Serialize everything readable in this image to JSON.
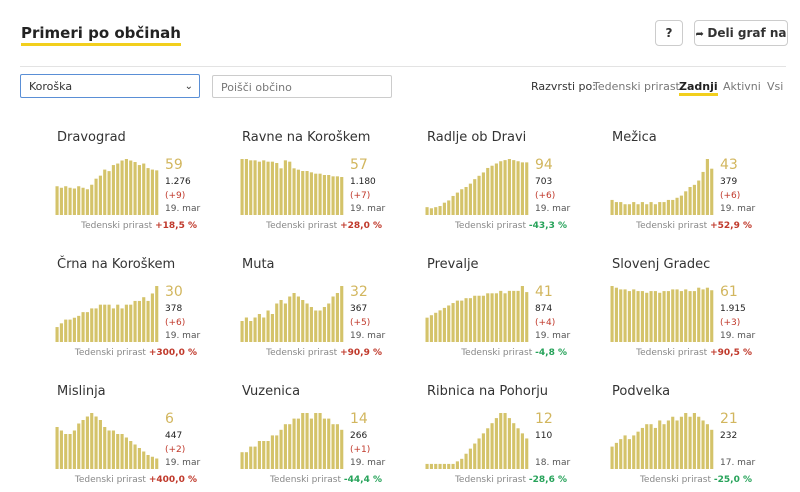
{
  "header": {
    "title": "Primeri po občinah",
    "help": "?",
    "share": "Deli graf na"
  },
  "filters": {
    "region": "Koroška",
    "search_placeholder": "Poišči občino",
    "sort_label": "Razvrsti po:",
    "sort_options": [
      "Tedenski prirast",
      "Zadnji",
      "Aktivni",
      "Vsi"
    ],
    "active_sort": 1
  },
  "panels": [
    {
      "name": "Dravograd",
      "active": "59",
      "total": "1.276",
      "change": "(+9)",
      "date": "19. mar",
      "footer_label": "Tedenski prirast",
      "weekly": "+18,5 %",
      "bars": [
        38,
        36,
        38,
        36,
        35,
        38,
        36,
        34,
        40,
        48,
        52,
        60,
        58,
        66,
        68,
        72,
        74,
        72,
        70,
        66,
        68,
        62,
        60,
        59
      ]
    },
    {
      "name": "Ravne na Koroškem",
      "active": "57",
      "total": "1.180",
      "change": "(+7)",
      "date": "19. mar",
      "footer_label": "Tedenski prirast",
      "weekly": "+28,0 %",
      "bars": [
        84,
        84,
        82,
        82,
        80,
        82,
        80,
        80,
        78,
        70,
        82,
        80,
        70,
        68,
        66,
        66,
        64,
        62,
        62,
        60,
        60,
        58,
        58,
        57
      ]
    },
    {
      "name": "Radlje ob Dravi",
      "active": "94",
      "total": "703",
      "change": "(+6)",
      "date": "19. mar",
      "footer_label": "Tedenski prirast",
      "weekly": "-43,3 %",
      "bars": [
        14,
        12,
        14,
        16,
        22,
        26,
        34,
        40,
        46,
        50,
        56,
        64,
        70,
        76,
        84,
        88,
        92,
        96,
        98,
        100,
        98,
        96,
        94,
        94
      ]
    },
    {
      "name": "Mežica",
      "active": "43",
      "total": "379",
      "change": "(+6)",
      "date": "19. mar",
      "footer_label": "Tedenski prirast",
      "weekly": "+52,9 %",
      "bars": [
        14,
        12,
        12,
        10,
        10,
        12,
        10,
        12,
        10,
        12,
        10,
        12,
        12,
        14,
        14,
        16,
        18,
        22,
        26,
        28,
        32,
        40,
        52,
        43
      ]
    },
    {
      "name": "Črna na Koroškem",
      "active": "30",
      "total": "378",
      "change": "(+6)",
      "date": "19. mar",
      "footer_label": "Tedenski prirast",
      "weekly": "+300,0 %",
      "bars": [
        8,
        10,
        12,
        12,
        13,
        14,
        16,
        16,
        18,
        18,
        20,
        20,
        20,
        18,
        20,
        18,
        20,
        20,
        22,
        22,
        24,
        22,
        26,
        30
      ]
    },
    {
      "name": "Muta",
      "active": "32",
      "total": "367",
      "change": "(+5)",
      "date": "19. mar",
      "footer_label": "Tedenski prirast",
      "weekly": "+90,9 %",
      "bars": [
        12,
        14,
        12,
        14,
        16,
        14,
        18,
        16,
        22,
        24,
        22,
        26,
        28,
        26,
        24,
        22,
        20,
        18,
        18,
        20,
        22,
        26,
        28,
        32
      ]
    },
    {
      "name": "Prevalje",
      "active": "41",
      "total": "874",
      "change": "(+4)",
      "date": "19. mar",
      "footer_label": "Tedenski prirast",
      "weekly": "-4,8 %",
      "bars": [
        20,
        22,
        24,
        26,
        28,
        30,
        32,
        34,
        34,
        36,
        36,
        38,
        38,
        38,
        40,
        40,
        40,
        42,
        40,
        42,
        42,
        42,
        46,
        41
      ]
    },
    {
      "name": "Slovenj Gradec",
      "active": "61",
      "total": "1.915",
      "change": "(+3)",
      "date": "19. mar",
      "footer_label": "Tedenski prirast",
      "weekly": "+90,5 %",
      "bars": [
        66,
        64,
        62,
        62,
        60,
        62,
        60,
        60,
        58,
        60,
        60,
        58,
        60,
        60,
        62,
        62,
        60,
        62,
        60,
        60,
        64,
        62,
        64,
        61
      ]
    },
    {
      "name": "Mislinja",
      "active": "6",
      "total": "447",
      "change": "(+2)",
      "date": "19. mar",
      "footer_label": "Tedenski prirast",
      "weekly": "+400,0 %",
      "bars": [
        24,
        22,
        20,
        20,
        22,
        26,
        28,
        30,
        32,
        30,
        28,
        24,
        22,
        22,
        20,
        20,
        18,
        16,
        14,
        12,
        10,
        8,
        7,
        6
      ]
    },
    {
      "name": "Vuzenica",
      "active": "14",
      "total": "266",
      "change": "(+1)",
      "date": "19. mar",
      "footer_label": "Tedenski prirast",
      "weekly": "-44,4 %",
      "bars": [
        6,
        6,
        8,
        8,
        10,
        10,
        10,
        12,
        12,
        14,
        16,
        16,
        18,
        18,
        20,
        20,
        18,
        20,
        20,
        18,
        18,
        16,
        16,
        14
      ]
    },
    {
      "name": "Ribnica na Pohorju",
      "active": "12",
      "total": "110",
      "date": "18. mar",
      "footer_label": "Tedenski prirast",
      "weekly": "-28,6 %",
      "bars": [
        2,
        2,
        2,
        2,
        2,
        2,
        2,
        3,
        4,
        6,
        8,
        10,
        12,
        14,
        16,
        18,
        20,
        22,
        22,
        20,
        18,
        16,
        14,
        12
      ]
    },
    {
      "name": "Podvelka",
      "active": "21",
      "total": "232",
      "date": "17. mar",
      "footer_label": "Tedenski prirast",
      "weekly": "-25,0 %",
      "bars": [
        12,
        14,
        16,
        18,
        16,
        18,
        20,
        22,
        24,
        24,
        22,
        26,
        24,
        26,
        28,
        26,
        28,
        30,
        28,
        30,
        28,
        26,
        24,
        21
      ]
    }
  ]
}
